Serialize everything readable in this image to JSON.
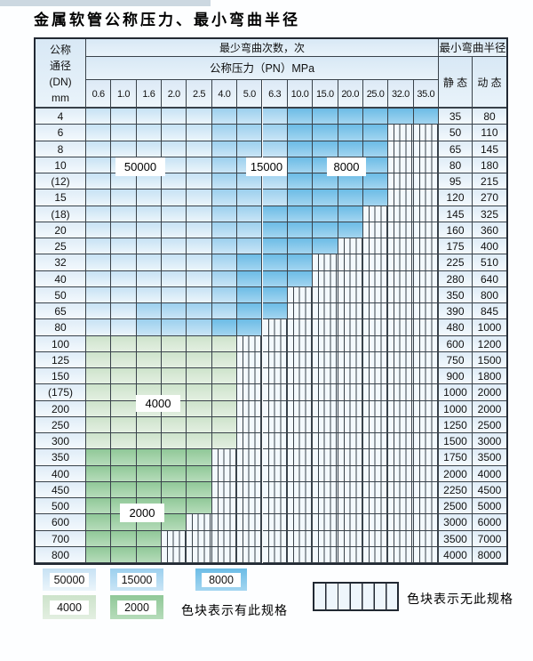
{
  "title": "金属软管公称压力、最小弯曲半径",
  "table": {
    "dn_header_lines": [
      "公称",
      "通径",
      "(DN)",
      "mm"
    ],
    "cycles_header": "最少弯曲次数，次",
    "pressure_header": "公称压力（PN）MPa",
    "pressure_ticks": [
      "0.6",
      "1.0",
      "1.6",
      "2.0",
      "2.5",
      "4.0",
      "5.0",
      "6.3",
      "10.0",
      "15.0",
      "20.0",
      "25.0",
      "32.0",
      "35.0"
    ],
    "radius_header": "最小弯曲半径",
    "static_header": "静 态",
    "dynamic_header": "动 态"
  },
  "colors": {
    "blue_50000": "#d9ecf8",
    "blue_15000": "#b5dbf2",
    "blue_8000": "#85c7ea",
    "green_4000": "#d8e9d6",
    "green_2000": "#a2d1a7"
  },
  "cycle_labels": {
    "b50000": "50000",
    "b15000": "15000",
    "b8000": "8000",
    "b4000": "4000",
    "b2000": "2000"
  },
  "rows": [
    {
      "dn": "4",
      "static": "35",
      "dynamic": "80",
      "bands": [
        {
          "from": 0,
          "to": 4,
          "c": "b50000"
        },
        {
          "from": 5,
          "to": 7,
          "c": "b15000"
        },
        {
          "from": 8,
          "to": 13,
          "c": "b8000"
        }
      ],
      "hatch_from": null
    },
    {
      "dn": "6",
      "static": "50",
      "dynamic": "110",
      "bands": [
        {
          "from": 0,
          "to": 4,
          "c": "b50000"
        },
        {
          "from": 5,
          "to": 7,
          "c": "b15000"
        },
        {
          "from": 8,
          "to": 11,
          "c": "b8000"
        }
      ],
      "hatch_from": 12
    },
    {
      "dn": "8",
      "static": "65",
      "dynamic": "145",
      "bands": [
        {
          "from": 0,
          "to": 4,
          "c": "b50000"
        },
        {
          "from": 5,
          "to": 7,
          "c": "b15000"
        },
        {
          "from": 8,
          "to": 11,
          "c": "b8000"
        }
      ],
      "hatch_from": 12
    },
    {
      "dn": "10",
      "static": "80",
      "dynamic": "180",
      "bands": [
        {
          "from": 0,
          "to": 4,
          "c": "b50000"
        },
        {
          "from": 5,
          "to": 7,
          "c": "b15000"
        },
        {
          "from": 8,
          "to": 11,
          "c": "b8000"
        }
      ],
      "hatch_from": 12
    },
    {
      "dn": "(12)",
      "static": "95",
      "dynamic": "215",
      "bands": [
        {
          "from": 0,
          "to": 4,
          "c": "b50000"
        },
        {
          "from": 5,
          "to": 7,
          "c": "b15000"
        },
        {
          "from": 8,
          "to": 11,
          "c": "b8000"
        }
      ],
      "hatch_from": 12
    },
    {
      "dn": "15",
      "static": "120",
      "dynamic": "270",
      "bands": [
        {
          "from": 0,
          "to": 4,
          "c": "b50000"
        },
        {
          "from": 5,
          "to": 7,
          "c": "b15000"
        },
        {
          "from": 8,
          "to": 11,
          "c": "b8000"
        }
      ],
      "hatch_from": 12
    },
    {
      "dn": "(18)",
      "static": "145",
      "dynamic": "325",
      "bands": [
        {
          "from": 0,
          "to": 4,
          "c": "b50000"
        },
        {
          "from": 5,
          "to": 6,
          "c": "b15000"
        },
        {
          "from": 7,
          "to": 10,
          "c": "b8000"
        }
      ],
      "hatch_from": 11
    },
    {
      "dn": "20",
      "static": "160",
      "dynamic": "360",
      "bands": [
        {
          "from": 0,
          "to": 4,
          "c": "b50000"
        },
        {
          "from": 5,
          "to": 6,
          "c": "b15000"
        },
        {
          "from": 7,
          "to": 10,
          "c": "b8000"
        }
      ],
      "hatch_from": 11
    },
    {
      "dn": "25",
      "static": "175",
      "dynamic": "400",
      "bands": [
        {
          "from": 0,
          "to": 4,
          "c": "b50000"
        },
        {
          "from": 5,
          "to": 6,
          "c": "b15000"
        },
        {
          "from": 7,
          "to": 9,
          "c": "b8000"
        }
      ],
      "hatch_from": 10
    },
    {
      "dn": "32",
      "static": "225",
      "dynamic": "510",
      "bands": [
        {
          "from": 0,
          "to": 4,
          "c": "b50000"
        },
        {
          "from": 5,
          "to": 5,
          "c": "b15000"
        },
        {
          "from": 6,
          "to": 8,
          "c": "b8000"
        }
      ],
      "hatch_from": 9
    },
    {
      "dn": "40",
      "static": "280",
      "dynamic": "640",
      "bands": [
        {
          "from": 0,
          "to": 4,
          "c": "b50000"
        },
        {
          "from": 5,
          "to": 5,
          "c": "b15000"
        },
        {
          "from": 6,
          "to": 8,
          "c": "b8000"
        }
      ],
      "hatch_from": 9
    },
    {
      "dn": "50",
      "static": "350",
      "dynamic": "800",
      "bands": [
        {
          "from": 0,
          "to": 4,
          "c": "b50000"
        },
        {
          "from": 5,
          "to": 5,
          "c": "b15000"
        },
        {
          "from": 6,
          "to": 7,
          "c": "b8000"
        }
      ],
      "hatch_from": 8
    },
    {
      "dn": "65",
      "static": "390",
      "dynamic": "845",
      "bands": [
        {
          "from": 0,
          "to": 1,
          "c": "b50000"
        },
        {
          "from": 2,
          "to": 5,
          "c": "b15000"
        },
        {
          "from": 6,
          "to": 7,
          "c": "b8000"
        }
      ],
      "hatch_from": 8
    },
    {
      "dn": "80",
      "static": "480",
      "dynamic": "1000",
      "bands": [
        {
          "from": 0,
          "to": 1,
          "c": "b50000"
        },
        {
          "from": 2,
          "to": 4,
          "c": "b15000"
        },
        {
          "from": 5,
          "to": 6,
          "c": "b8000"
        }
      ],
      "hatch_from": 7
    },
    {
      "dn": "100",
      "static": "600",
      "dynamic": "1200",
      "bands": [
        {
          "from": 0,
          "to": 5,
          "c": "b4000"
        }
      ],
      "hatch_from": 6
    },
    {
      "dn": "125",
      "static": "750",
      "dynamic": "1500",
      "bands": [
        {
          "from": 0,
          "to": 5,
          "c": "b4000"
        }
      ],
      "hatch_from": 6
    },
    {
      "dn": "150",
      "static": "900",
      "dynamic": "1800",
      "bands": [
        {
          "from": 0,
          "to": 5,
          "c": "b4000"
        }
      ],
      "hatch_from": 6
    },
    {
      "dn": "(175)",
      "static": "1000",
      "dynamic": "2000",
      "bands": [
        {
          "from": 0,
          "to": 5,
          "c": "b4000"
        }
      ],
      "hatch_from": 6
    },
    {
      "dn": "200",
      "static": "1000",
      "dynamic": "2000",
      "bands": [
        {
          "from": 0,
          "to": 5,
          "c": "b4000"
        }
      ],
      "hatch_from": 6
    },
    {
      "dn": "250",
      "static": "1250",
      "dynamic": "2500",
      "bands": [
        {
          "from": 0,
          "to": 5,
          "c": "b4000"
        }
      ],
      "hatch_from": 6
    },
    {
      "dn": "300",
      "static": "1500",
      "dynamic": "3000",
      "bands": [
        {
          "from": 0,
          "to": 5,
          "c": "b4000"
        }
      ],
      "hatch_from": 6
    },
    {
      "dn": "350",
      "static": "1750",
      "dynamic": "3500",
      "bands": [
        {
          "from": 0,
          "to": 4,
          "c": "b2000"
        }
      ],
      "hatch_from": 5
    },
    {
      "dn": "400",
      "static": "2000",
      "dynamic": "4000",
      "bands": [
        {
          "from": 0,
          "to": 4,
          "c": "b2000"
        }
      ],
      "hatch_from": 5
    },
    {
      "dn": "450",
      "static": "2250",
      "dynamic": "4500",
      "bands": [
        {
          "from": 0,
          "to": 4,
          "c": "b2000"
        }
      ],
      "hatch_from": 5
    },
    {
      "dn": "500",
      "static": "2500",
      "dynamic": "5000",
      "bands": [
        {
          "from": 0,
          "to": 4,
          "c": "b2000"
        }
      ],
      "hatch_from": 5
    },
    {
      "dn": "600",
      "static": "3000",
      "dynamic": "6000",
      "bands": [
        {
          "from": 0,
          "to": 3,
          "c": "b2000"
        }
      ],
      "hatch_from": 4
    },
    {
      "dn": "700",
      "static": "3500",
      "dynamic": "7000",
      "bands": [
        {
          "from": 0,
          "to": 2,
          "c": "b2000"
        }
      ],
      "hatch_from": 3
    },
    {
      "dn": "800",
      "static": "4000",
      "dynamic": "8000",
      "bands": [
        {
          "from": 0,
          "to": 2,
          "c": "b2000"
        }
      ],
      "hatch_from": 3
    }
  ],
  "legend": {
    "has_spec_items": [
      {
        "key": "b50000",
        "label": "50000"
      },
      {
        "key": "b15000",
        "label": "15000"
      },
      {
        "key": "b8000",
        "label": "8000"
      },
      {
        "key": "b4000",
        "label": "4000"
      },
      {
        "key": "b2000",
        "label": "2000"
      }
    ],
    "has_spec_text": "色块表示有此规格",
    "no_spec_text": "色块表示无此规格"
  }
}
